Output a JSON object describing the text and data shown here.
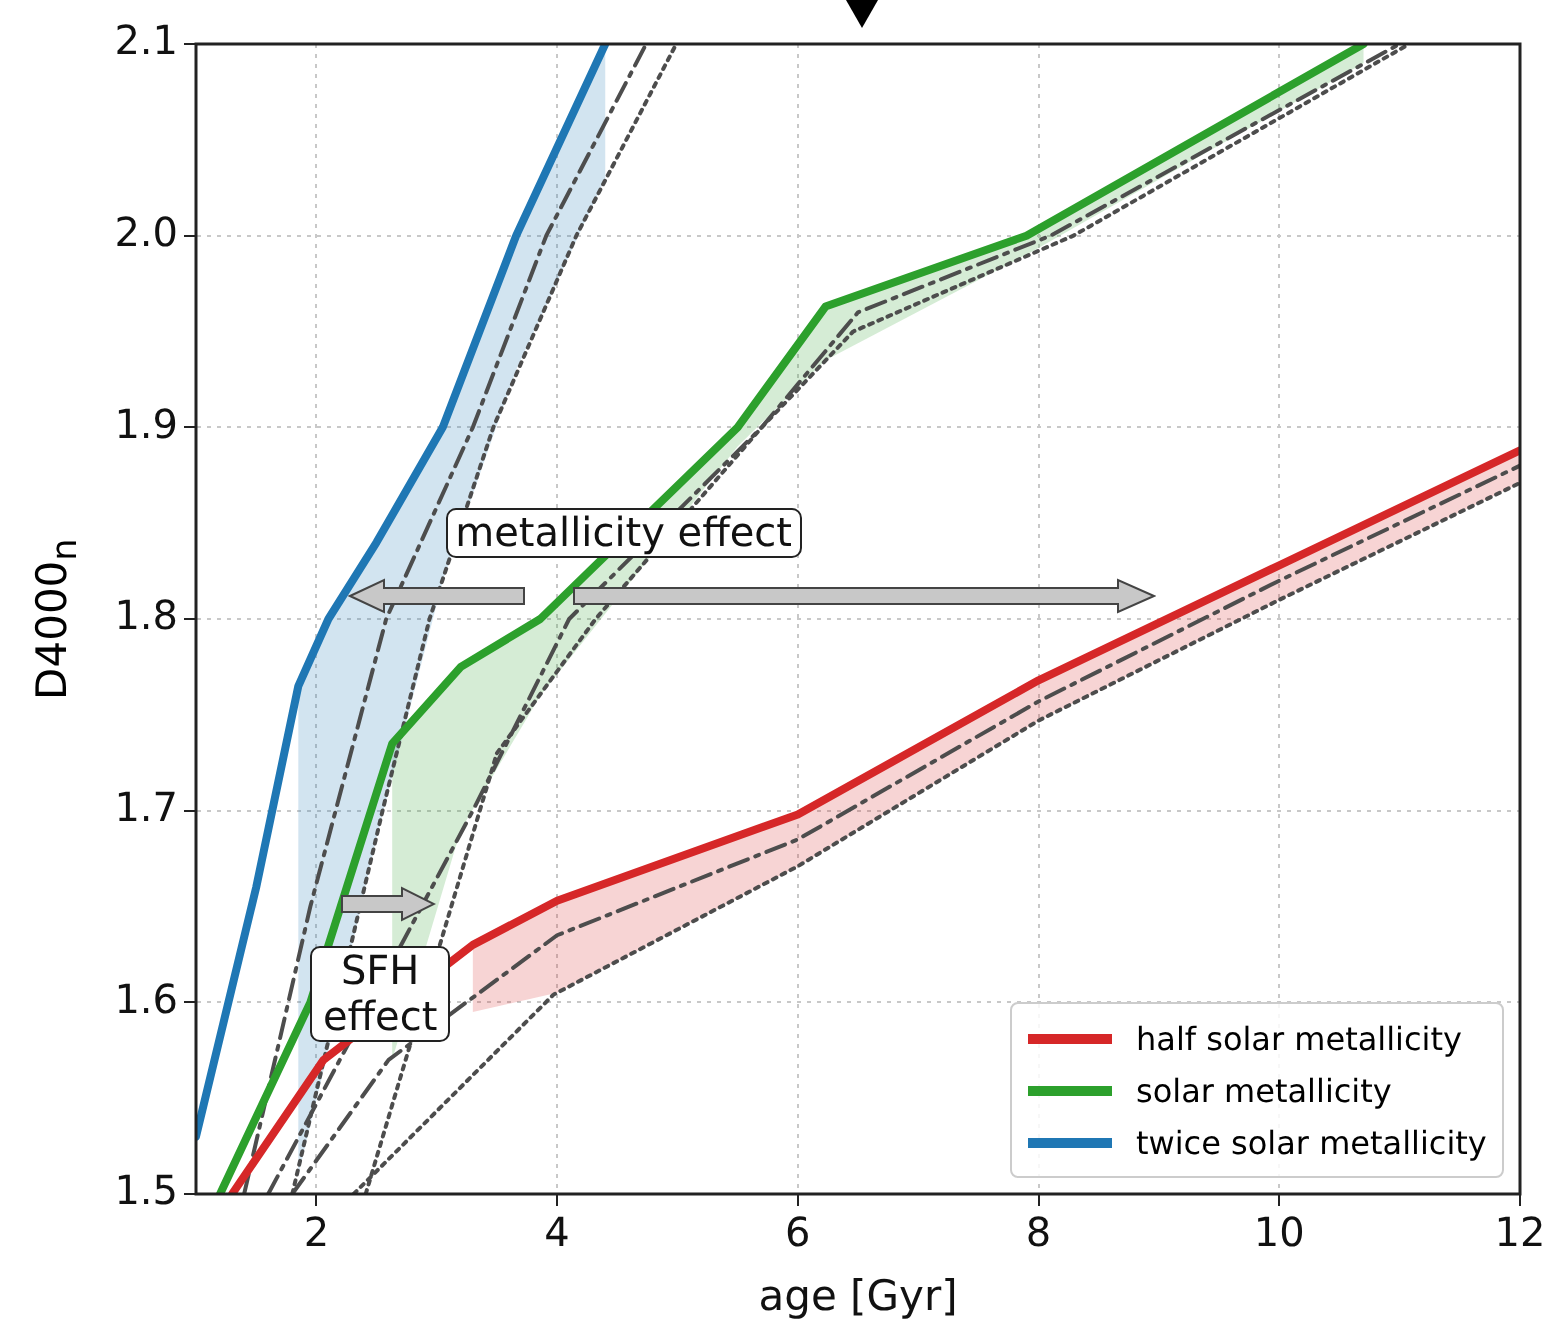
{
  "chart_data": {
    "type": "line",
    "xlabel": "age [Gyr]",
    "ylabel": "D4000$_{n}$",
    "xlim": [
      1,
      12
    ],
    "xticks": [
      2,
      4,
      6,
      8,
      10,
      12
    ],
    "ylim": [
      1.5,
      2.1
    ],
    "yticks": [
      1.5,
      1.6,
      1.7,
      1.8,
      1.9,
      {
        "value": 2.0,
        "label": "2.0"
      },
      2.1
    ],
    "grid": true,
    "legend": "bottom right",
    "marker": "none",
    "annotations": [
      {
        "text": "metallicity effect",
        "x": 4.55,
        "y": 1.845
      },
      {
        "text": "SFH effect",
        "x": 2.53,
        "y": 1.604
      }
    ],
    "series": [
      {
        "name": "half solar metallicity",
        "color": "#d62728",
        "line_style": "solid",
        "x": [
          1.3,
          2.06,
          3.3,
          4,
          6,
          8,
          10,
          12
        ],
        "values": [
          1.5,
          1.57,
          1.63,
          1.653,
          1.698,
          1.768,
          1.828,
          1.888
        ],
        "lower": [
          null,
          null,
          1.595,
          1.605,
          1.671,
          1.747,
          1.81,
          1.871
        ],
        "upper": [
          null,
          null,
          1.63,
          1.653,
          1.698,
          1.768,
          1.828,
          1.888
        ]
      },
      {
        "name": "solar metallicity",
        "color": "#2ca02c",
        "line_style": "solid",
        "x": [
          1.2,
          1.95,
          2.63,
          3.2,
          3.86,
          5.5,
          6.23,
          7.9,
          10.7
        ],
        "values": [
          1.5,
          1.6,
          1.735,
          1.775,
          1.8,
          1.9,
          1.963,
          2.0,
          2.1
        ],
        "lower": [
          null,
          null,
          1.57,
          1.69,
          1.76,
          1.89,
          1.935,
          1.99,
          2.09
        ],
        "upper": [
          null,
          null,
          1.735,
          1.775,
          1.8,
          1.9,
          1.963,
          2.0,
          2.1
        ]
      },
      {
        "name": "twice solar metallicity",
        "color": "#1f77b4",
        "line_style": "solid",
        "x": [
          1.0,
          1.5,
          1.85,
          2.1,
          2.5,
          3.05,
          3.66,
          4.4
        ],
        "values": [
          1.53,
          1.66,
          1.765,
          1.8,
          1.84,
          1.9,
          2.0,
          2.1
        ],
        "lower": [
          null,
          null,
          1.51,
          1.575,
          1.686,
          1.82,
          1.93,
          2.03
        ],
        "upper": [
          null,
          null,
          1.765,
          1.8,
          1.84,
          1.9,
          2.0,
          2.1
        ]
      },
      {
        "color": "#4d4d4d",
        "line_style": "dashed",
        "x": [
          1.8,
          2.6,
          4,
          6,
          8,
          10,
          12
        ],
        "values": [
          1.5,
          1.57,
          1.635,
          1.685,
          1.757,
          1.82,
          1.88
        ]
      },
      {
        "color": "#4d4d4d",
        "line_style": "dotted",
        "x": [
          2.31,
          3.97,
          6,
          8,
          10,
          12
        ],
        "values": [
          1.5,
          1.604,
          1.671,
          1.747,
          1.81,
          1.871
        ]
      },
      {
        "color": "#4d4d4d",
        "line_style": "dashed",
        "x": [
          1.6,
          3.3,
          4.1,
          5.7,
          6.5,
          8.1,
          11.0
        ],
        "values": [
          1.5,
          1.7,
          1.8,
          1.9,
          1.96,
          2.0,
          2.1
        ]
      },
      {
        "color": "#4d4d4d",
        "line_style": "dotted",
        "x": [
          2.41,
          3.5,
          4.32,
          5.7,
          6.46,
          8.29,
          11.08
        ],
        "values": [
          1.5,
          1.73,
          1.8,
          1.9,
          1.95,
          2.0,
          2.1
        ]
      },
      {
        "color": "#4d4d4d",
        "line_style": "dashed",
        "x": [
          1.4,
          1.95,
          2.58,
          3.3,
          3.91,
          4.74
        ],
        "values": [
          1.5,
          1.65,
          1.8,
          1.9,
          2.0,
          2.1
        ]
      },
      {
        "color": "#4d4d4d",
        "line_style": "dotted",
        "x": [
          1.8,
          2.55,
          2.94,
          3.47,
          4.16,
          4.99
        ],
        "values": [
          1.5,
          1.7,
          1.8,
          1.9,
          2.0,
          2.1
        ]
      }
    ]
  }
}
